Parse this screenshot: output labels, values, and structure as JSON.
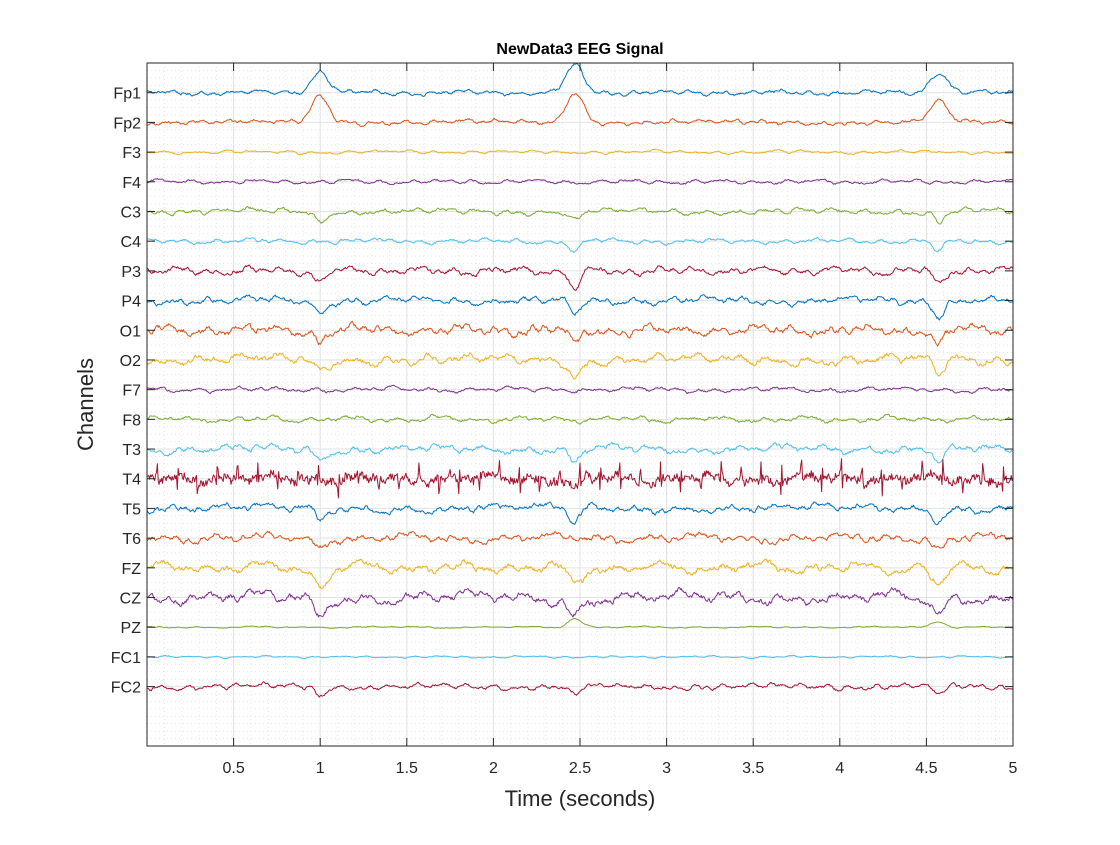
{
  "chart_data": {
    "type": "line",
    "title": "NewData3 EEG Signal",
    "xlabel": "Time (seconds)",
    "ylabel": "Channels",
    "xlim": [
      0,
      5
    ],
    "xticks": [
      0.5,
      1,
      1.5,
      2,
      2.5,
      3,
      3.5,
      4,
      4.5,
      5
    ],
    "xtick_labels": [
      "0.5",
      "1",
      "1.5",
      "2",
      "2.5",
      "3",
      "3.5",
      "4",
      "4.5",
      "5"
    ],
    "ylim": [
      -1,
      22
    ],
    "grid": true,
    "minor_grid": true,
    "channels": [
      {
        "name": "Fp1",
        "color": "#0072BD",
        "offset": 21,
        "noise": 0.12,
        "spikes": [
          {
            "t": 1.0,
            "amp": 0.7,
            "width": 0.05
          },
          {
            "t": 2.47,
            "amp": 0.9,
            "width": 0.05
          },
          {
            "t": 4.57,
            "amp": 0.7,
            "width": 0.05
          }
        ]
      },
      {
        "name": "Fp2",
        "color": "#D95319",
        "offset": 20,
        "noise": 0.12,
        "spikes": [
          {
            "t": 1.0,
            "amp": 0.9,
            "width": 0.05
          },
          {
            "t": 2.47,
            "amp": 1.0,
            "width": 0.05
          },
          {
            "t": 4.57,
            "amp": 0.7,
            "width": 0.05
          }
        ]
      },
      {
        "name": "F3",
        "color": "#EDB120",
        "offset": 19,
        "noise": 0.08,
        "spikes": []
      },
      {
        "name": "F4",
        "color": "#7E2F8E",
        "offset": 18,
        "noise": 0.1,
        "spikes": []
      },
      {
        "name": "C3",
        "color": "#77AC30",
        "offset": 17,
        "noise": 0.14,
        "spikes": [
          {
            "t": 1.0,
            "amp": -0.35,
            "width": 0.03
          },
          {
            "t": 2.47,
            "amp": -0.35,
            "width": 0.03
          },
          {
            "t": 4.57,
            "amp": -0.35,
            "width": 0.03
          }
        ]
      },
      {
        "name": "C4",
        "color": "#4DBEEE",
        "offset": 16,
        "noise": 0.12,
        "spikes": [
          {
            "t": 2.47,
            "amp": -0.35,
            "width": 0.03
          },
          {
            "t": 4.57,
            "amp": -0.35,
            "width": 0.03
          }
        ]
      },
      {
        "name": "P3",
        "color": "#A2142F",
        "offset": 15,
        "noise": 0.18,
        "spikes": [
          {
            "t": 1.0,
            "amp": -0.4,
            "width": 0.03
          },
          {
            "t": 2.47,
            "amp": -0.6,
            "width": 0.03
          },
          {
            "t": 4.57,
            "amp": -0.5,
            "width": 0.03
          }
        ]
      },
      {
        "name": "P4",
        "color": "#0072BD",
        "offset": 14,
        "noise": 0.18,
        "spikes": [
          {
            "t": 1.0,
            "amp": -0.4,
            "width": 0.03
          },
          {
            "t": 2.47,
            "amp": -0.5,
            "width": 0.03
          },
          {
            "t": 4.57,
            "amp": -0.5,
            "width": 0.03
          }
        ]
      },
      {
        "name": "O1",
        "color": "#D95319",
        "offset": 13,
        "noise": 0.24,
        "spikes": [
          {
            "t": 1.0,
            "amp": -0.4,
            "width": 0.03
          },
          {
            "t": 2.47,
            "amp": -0.5,
            "width": 0.03
          },
          {
            "t": 4.57,
            "amp": -0.5,
            "width": 0.03
          }
        ]
      },
      {
        "name": "O2",
        "color": "#EDB120",
        "offset": 12,
        "noise": 0.24,
        "spikes": [
          {
            "t": 1.0,
            "amp": -0.4,
            "width": 0.03
          },
          {
            "t": 2.47,
            "amp": -0.6,
            "width": 0.03
          },
          {
            "t": 4.57,
            "amp": -0.5,
            "width": 0.03
          }
        ]
      },
      {
        "name": "F7",
        "color": "#7E2F8E",
        "offset": 11,
        "noise": 0.12,
        "spikes": []
      },
      {
        "name": "F8",
        "color": "#77AC30",
        "offset": 10,
        "noise": 0.14,
        "spikes": []
      },
      {
        "name": "T3",
        "color": "#4DBEEE",
        "offset": 9,
        "noise": 0.2,
        "spikes": [
          {
            "t": 1.0,
            "amp": -0.4,
            "width": 0.03
          },
          {
            "t": 2.47,
            "amp": -0.5,
            "width": 0.03
          },
          {
            "t": 4.57,
            "amp": -0.5,
            "width": 0.03
          }
        ]
      },
      {
        "name": "T4",
        "color": "#A2142F",
        "offset": 8,
        "noise": 0.22,
        "rhythm": 0.55,
        "spikes": [
          {
            "t": 2.47,
            "amp": -0.4,
            "width": 0.03
          }
        ]
      },
      {
        "name": "T5",
        "color": "#0072BD",
        "offset": 7,
        "noise": 0.2,
        "spikes": [
          {
            "t": 1.0,
            "amp": -0.4,
            "width": 0.03
          },
          {
            "t": 2.47,
            "amp": -0.5,
            "width": 0.03
          },
          {
            "t": 4.57,
            "amp": -0.4,
            "width": 0.03
          }
        ]
      },
      {
        "name": "T6",
        "color": "#D95319",
        "offset": 6,
        "noise": 0.2,
        "spikes": [
          {
            "t": 1.0,
            "amp": -0.3,
            "width": 0.03
          },
          {
            "t": 4.57,
            "amp": -0.4,
            "width": 0.03
          }
        ]
      },
      {
        "name": "FZ",
        "color": "#EDB120",
        "offset": 5,
        "noise": 0.26,
        "spikes": [
          {
            "t": 1.0,
            "amp": -0.6,
            "width": 0.04
          },
          {
            "t": 2.47,
            "amp": -0.6,
            "width": 0.04
          },
          {
            "t": 4.57,
            "amp": -0.5,
            "width": 0.04
          }
        ]
      },
      {
        "name": "CZ",
        "color": "#7E2F8E",
        "offset": 4,
        "noise": 0.28,
        "spikes": [
          {
            "t": 1.0,
            "amp": -0.6,
            "width": 0.04
          },
          {
            "t": 2.47,
            "amp": -0.5,
            "width": 0.04
          },
          {
            "t": 4.57,
            "amp": -0.6,
            "width": 0.04
          }
        ]
      },
      {
        "name": "PZ",
        "color": "#77AC30",
        "offset": 3,
        "noise": 0.04,
        "spikes": [
          {
            "t": 2.47,
            "amp": 0.3,
            "width": 0.04
          },
          {
            "t": 4.57,
            "amp": 0.2,
            "width": 0.04
          }
        ]
      },
      {
        "name": "FC1",
        "color": "#4DBEEE",
        "offset": 2,
        "noise": 0.05,
        "spikes": []
      },
      {
        "name": "FC2",
        "color": "#A2142F",
        "offset": 1,
        "noise": 0.14,
        "spikes": [
          {
            "t": 1.0,
            "amp": -0.3,
            "width": 0.03
          },
          {
            "t": 2.47,
            "amp": -0.3,
            "width": 0.03
          },
          {
            "t": 4.57,
            "amp": -0.3,
            "width": 0.03
          }
        ]
      }
    ]
  }
}
